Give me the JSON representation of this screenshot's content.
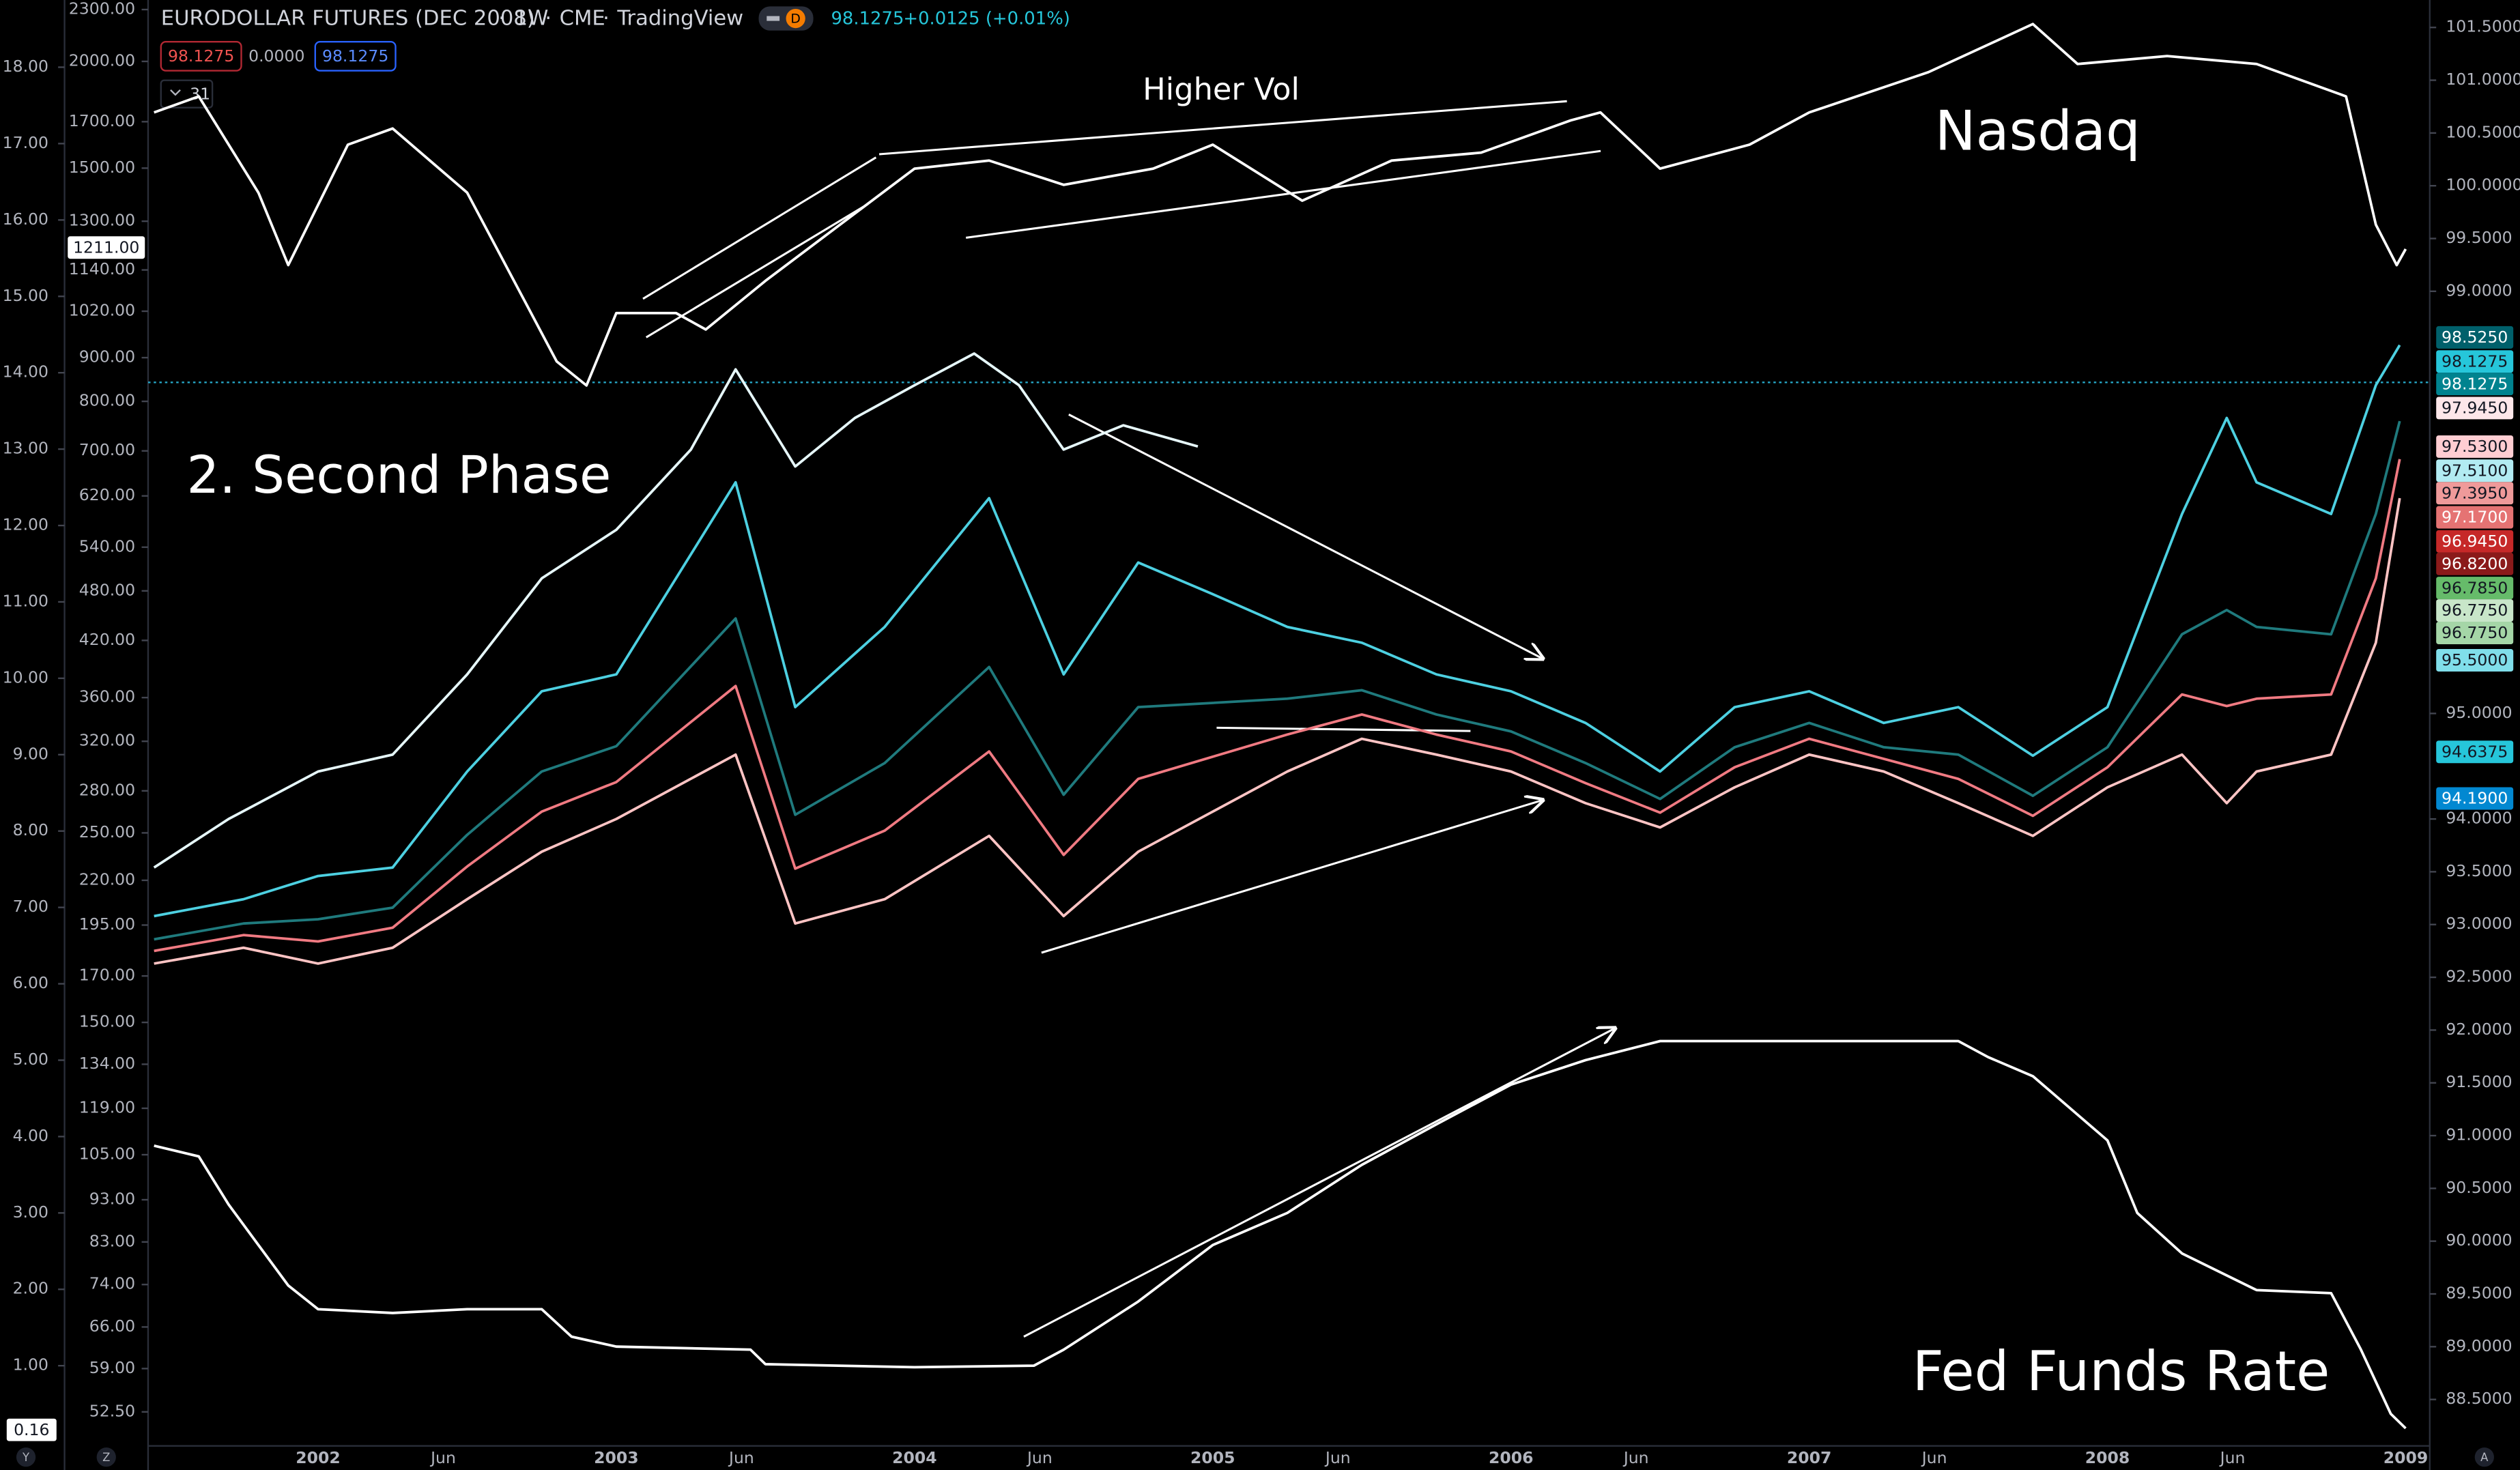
{
  "header": {
    "title": "EURODOLLAR FUTURES (DEC 2008)",
    "interval": "1W",
    "exchange": "CME",
    "source": "TradingView",
    "last": "98.1275",
    "change": "+0.0125 (+0.01%)",
    "sell": "98.1275",
    "spread": "0.0000",
    "buy": "98.1275",
    "indicator_count": "31",
    "badge": "D"
  },
  "buttons": [
    "Y",
    "Z",
    "A"
  ],
  "chart_data": [
    {
      "type": "line",
      "y_axis": "right",
      "annotations": [
        "2. Second Phase"
      ],
      "xlim": [
        2001.43,
        2009.07
      ],
      "xticks": [
        2002,
        {
          "value": 2002.42,
          "label": "Jun"
        },
        2003,
        {
          "value": 2003.42,
          "label": "Jun"
        },
        2004,
        {
          "value": 2004.42,
          "label": "Jun"
        },
        2005,
        {
          "value": 2005.42,
          "label": "Jun"
        },
        2006,
        {
          "value": 2006.42,
          "label": "Jun"
        },
        2007,
        {
          "value": 2007.42,
          "label": "Jun"
        },
        2008,
        {
          "value": 2008.42,
          "label": "Jun"
        },
        2009
      ],
      "ylim": [
        88.06,
        101.76
      ],
      "yticks": [
        {
          "value": 101.5,
          "label": "101.5000"
        },
        {
          "value": 101,
          "label": "101.0000"
        },
        {
          "value": 100.5,
          "label": "100.5000"
        },
        {
          "value": 100,
          "label": "100.0000"
        },
        {
          "value": 99.5,
          "label": "99.5000"
        },
        {
          "value": 99,
          "label": "99.0000"
        },
        {
          "value": 95,
          "label": "95.0000"
        },
        {
          "value": 94,
          "label": "94.0000"
        },
        {
          "value": 93.5,
          "label": "93.5000"
        },
        {
          "value": 93,
          "label": "93.0000"
        },
        {
          "value": 92.5,
          "label": "92.5000"
        },
        {
          "value": 92,
          "label": "92.0000"
        },
        {
          "value": 91.5,
          "label": "91.5000"
        },
        {
          "value": 91,
          "label": "91.0000"
        },
        {
          "value": 90.5,
          "label": "90.5000"
        },
        {
          "value": 90,
          "label": "90.0000"
        },
        {
          "value": 89.5,
          "label": "89.5000"
        },
        {
          "value": 89,
          "label": "89.0000"
        },
        {
          "value": 88.5,
          "label": "88.5000"
        }
      ],
      "x": [
        2001.45,
        2001.75,
        2002.0,
        2002.25,
        2002.5,
        2002.75,
        2003.0,
        2003.4,
        2003.6,
        2003.9,
        2004.25,
        2004.5,
        2004.75,
        2005.0,
        2005.25,
        2005.5,
        2005.75,
        2006.0,
        2006.25,
        2006.5,
        2006.75,
        2007.0,
        2007.25,
        2007.5,
        2007.75,
        2008.0,
        2008.25,
        2008.4,
        2008.5,
        2008.75,
        2008.9,
        2008.98
      ],
      "series": [
        {
          "color": "#e6f7fa",
          "x": [
            2001.45,
            2001.7,
            2002.0,
            2002.25,
            2002.5,
            2002.75,
            2003.0,
            2003.25,
            2003.4,
            2003.6,
            2003.8,
            2004.0,
            2004.2,
            2004.35,
            2004.5,
            2004.7,
            2004.95
          ],
          "values": [
            93.54,
            94.0,
            94.45,
            94.61,
            95.37,
            96.28,
            96.74,
            97.5,
            98.26,
            97.34,
            97.8,
            98.11,
            98.41,
            98.11,
            97.5,
            97.73,
            97.53
          ]
        },
        {
          "color": "#4dd0e1",
          "values": [
            93.08,
            93.24,
            93.46,
            93.54,
            94.45,
            95.21,
            95.37,
            97.19,
            95.06,
            95.82,
            97.04,
            95.37,
            96.43,
            96.13,
            95.82,
            95.67,
            95.37,
            95.21,
            94.91,
            94.45,
            95.06,
            95.21,
            94.91,
            95.06,
            94.6,
            95.06,
            96.89,
            97.8,
            97.19,
            96.89,
            98.11,
            98.49
          ]
        },
        {
          "color": "#1f7a7d",
          "values": [
            92.86,
            93.01,
            93.05,
            93.16,
            93.85,
            94.45,
            94.69,
            95.9,
            94.04,
            94.53,
            95.44,
            94.23,
            95.06,
            95.1,
            95.14,
            95.22,
            94.99,
            94.83,
            94.53,
            94.19,
            94.68,
            94.91,
            94.68,
            94.61,
            94.22,
            94.68,
            95.75,
            95.98,
            95.82,
            95.75,
            96.89,
            97.77
          ]
        },
        {
          "color": "#f07a82",
          "values": [
            92.75,
            92.9,
            92.84,
            92.97,
            93.55,
            94.07,
            94.35,
            95.26,
            93.53,
            93.89,
            94.64,
            93.66,
            94.38,
            94.59,
            94.8,
            94.99,
            94.8,
            94.64,
            94.34,
            94.06,
            94.49,
            94.76,
            94.57,
            94.38,
            94.03,
            94.49,
            95.18,
            95.07,
            95.14,
            95.18,
            96.28,
            97.41
          ]
        },
        {
          "color": "#ffc4c4",
          "values": [
            92.63,
            92.78,
            92.63,
            92.78,
            93.24,
            93.69,
            94.0,
            94.61,
            93.01,
            93.24,
            93.84,
            93.08,
            93.69,
            94.07,
            94.45,
            94.76,
            94.61,
            94.45,
            94.15,
            93.92,
            94.3,
            94.61,
            94.45,
            94.15,
            93.84,
            94.3,
            94.61,
            94.15,
            94.45,
            94.61,
            95.67,
            97.04
          ]
        }
      ],
      "price_tags": [
        {
          "value": 98.525,
          "label": "98.5250",
          "color": "#00606b"
        },
        {
          "value": 98.1275,
          "label": "98.1275",
          "color": "#26c6da"
        },
        {
          "value": 98.1275,
          "label": "98.1275",
          "color": "#00838f"
        },
        {
          "value": 97.945,
          "label": "97.9450",
          "color": "#fde7ea"
        },
        {
          "value": 97.53,
          "label": "97.5300",
          "color": "#ffcdd2"
        },
        {
          "value": 97.51,
          "label": "97.5100",
          "color": "#b2ebf2"
        },
        {
          "value": 97.395,
          "label": "97.3950",
          "color": "#ef9a9a"
        },
        {
          "value": 97.17,
          "label": "97.1700",
          "color": "#e57373"
        },
        {
          "value": 96.945,
          "label": "96.9450",
          "color": "#c62828"
        },
        {
          "value": 96.82,
          "label": "96.8200",
          "color": "#8b1a1a"
        },
        {
          "value": 96.785,
          "label": "96.7850",
          "color": "#66bb6a"
        },
        {
          "value": 96.775,
          "label": "96.7750",
          "color": "#c8e6c9"
        },
        {
          "value": 96.775,
          "label": "96.7750",
          "color": "#a5d6a7"
        },
        {
          "value": 95.5,
          "label": "95.5000",
          "color": "#80deea"
        },
        {
          "value": 94.6375,
          "label": "94.6375",
          "color": "#26c6da"
        },
        {
          "value": 94.19,
          "label": "94.1900",
          "color": "#0288d1"
        }
      ]
    },
    {
      "type": "line",
      "y_axis": "left-inner",
      "log_scale": true,
      "annotations": [
        "Nasdaq",
        "Higher Vol"
      ],
      "ylim": [
        47.9,
        2360
      ],
      "yticks": [
        {
          "value": 2300,
          "label": "2300.00"
        },
        {
          "value": 2000,
          "label": "2000.00"
        },
        {
          "value": 1700,
          "label": "1700.00"
        },
        {
          "value": 1500,
          "label": "1500.00"
        },
        {
          "value": 1300,
          "label": "1300.00"
        },
        {
          "value": 1140,
          "label": "1140.00"
        },
        {
          "value": 1020,
          "label": "1020.00"
        },
        {
          "value": 900,
          "label": "900.00"
        },
        {
          "value": 800,
          "label": "800.00"
        },
        {
          "value": 700,
          "label": "700.00"
        },
        {
          "value": 620,
          "label": "620.00"
        },
        {
          "value": 540,
          "label": "540.00"
        },
        {
          "value": 480,
          "label": "480.00"
        },
        {
          "value": 420,
          "label": "420.00"
        },
        {
          "value": 360,
          "label": "360.00"
        },
        {
          "value": 320,
          "label": "320.00"
        },
        {
          "value": 280,
          "label": "280.00"
        },
        {
          "value": 250,
          "label": "250.00"
        },
        {
          "value": 220,
          "label": "220.00"
        },
        {
          "value": 195,
          "label": "195.00"
        },
        {
          "value": 170,
          "label": "170.00"
        },
        {
          "value": 150,
          "label": "150.00"
        },
        {
          "value": 134,
          "label": "134.00"
        },
        {
          "value": 119,
          "label": "119.00"
        },
        {
          "value": 105,
          "label": "105.00"
        },
        {
          "value": 93,
          "label": "93.00"
        },
        {
          "value": 83,
          "label": "83.00"
        },
        {
          "value": 74,
          "label": "74.00"
        },
        {
          "value": 66,
          "label": "66.00"
        },
        {
          "value": 59,
          "label": "59.00"
        },
        {
          "value": 52.5,
          "label": "52.50"
        }
      ],
      "x": [
        2001.45,
        2001.6,
        2001.8,
        2001.9,
        2002.1,
        2002.25,
        2002.5,
        2002.7,
        2002.8,
        2002.9,
        2003.0,
        2003.2,
        2003.3,
        2003.5,
        2003.75,
        2004.0,
        2004.25,
        2004.5,
        2004.8,
        2005.0,
        2005.3,
        2005.6,
        2005.9,
        2006.2,
        2006.3,
        2006.5,
        2006.8,
        2007.0,
        2007.4,
        2007.75,
        2007.9,
        2008.2,
        2008.5,
        2008.8,
        2008.9,
        2008.97,
        2009.0
      ],
      "series": [
        {
          "color": "#ffffff",
          "values": [
            1743,
            1820,
            1404,
            1155,
            1598,
            1669,
            1404,
            1037,
            891,
            835,
            1015,
            1015,
            971,
            1107,
            1288,
            1498,
            1531,
            1434,
            1498,
            1598,
            1374,
            1531,
            1564,
            1706,
            1743,
            1498,
            1598,
            1743,
            1943,
            2212,
            1986,
            2029,
            1986,
            1820,
            1288,
            1155,
            1206
          ]
        }
      ],
      "price_tags": [
        {
          "value": 1211,
          "label": "1211.00",
          "color": "#ffffff"
        }
      ]
    },
    {
      "type": "line",
      "y_axis": "left-outer",
      "annotations": [
        "Fed Funds Rate"
      ],
      "ylim": [
        -0.05,
        18.88
      ],
      "yticks": [
        {
          "value": 18,
          "label": "18.00"
        },
        {
          "value": 17,
          "label": "17.00"
        },
        {
          "value": 16,
          "label": "16.00"
        },
        {
          "value": 15,
          "label": "15.00"
        },
        {
          "value": 14,
          "label": "14.00"
        },
        {
          "value": 13,
          "label": "13.00"
        },
        {
          "value": 12,
          "label": "12.00"
        },
        {
          "value": 11,
          "label": "11.00"
        },
        {
          "value": 10,
          "label": "10.00"
        },
        {
          "value": 9,
          "label": "9.00"
        },
        {
          "value": 8,
          "label": "8.00"
        },
        {
          "value": 7,
          "label": "7.00"
        },
        {
          "value": 6,
          "label": "6.00"
        },
        {
          "value": 5,
          "label": "5.00"
        },
        {
          "value": 4,
          "label": "4.00"
        },
        {
          "value": 3,
          "label": "3.00"
        },
        {
          "value": 2,
          "label": "2.00"
        },
        {
          "value": 1,
          "label": "1.00"
        }
      ],
      "x": [
        2001.45,
        2001.6,
        2001.7,
        2001.8,
        2001.9,
        2002.0,
        2002.25,
        2002.5,
        2002.75,
        2002.85,
        2003.0,
        2003.45,
        2003.5,
        2004.0,
        2004.4,
        2004.5,
        2004.75,
        2005.0,
        2005.25,
        2005.5,
        2005.75,
        2006.0,
        2006.25,
        2006.5,
        2007.0,
        2007.5,
        2007.6,
        2007.75,
        2008.0,
        2008.1,
        2008.25,
        2008.5,
        2008.75,
        2008.85,
        2008.95,
        2009.0
      ],
      "series": [
        {
          "color": "#ffffff",
          "values": [
            3.88,
            3.74,
            3.11,
            2.58,
            2.05,
            1.74,
            1.69,
            1.74,
            1.74,
            1.38,
            1.25,
            1.21,
            1.02,
            0.98,
            1.0,
            1.21,
            1.84,
            2.58,
            3.0,
            3.63,
            4.16,
            4.68,
            5.0,
            5.25,
            5.25,
            5.25,
            5.04,
            4.79,
            3.95,
            3.0,
            2.47,
            1.99,
            1.95,
            1.21,
            0.37,
            0.18
          ]
        }
      ],
      "price_tags": [
        {
          "value": 0.16,
          "label": "0.16",
          "color": "#ffffff"
        }
      ]
    }
  ]
}
